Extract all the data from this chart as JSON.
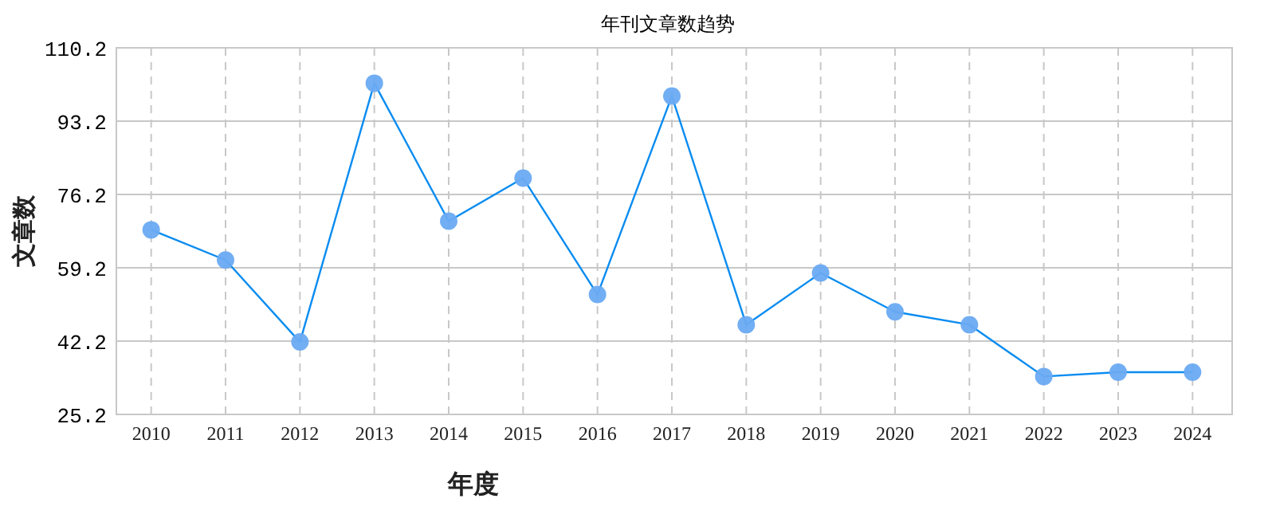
{
  "chart_data": {
    "type": "line",
    "title": "年刊文章数趋势",
    "xlabel": "年度",
    "ylabel": "文章数",
    "categories": [
      "2010",
      "2011",
      "2012",
      "2013",
      "2014",
      "2015",
      "2016",
      "2017",
      "2018",
      "2019",
      "2020",
      "2021",
      "2022",
      "2023",
      "2024"
    ],
    "series": [
      {
        "color": "#0a8cf0",
        "values": [
          68,
          61,
          42,
          102,
          70,
          80,
          53,
          99,
          46,
          58,
          49,
          46,
          34,
          35,
          35
        ]
      }
    ],
    "ylim": [
      25.2,
      110.2
    ],
    "yticks": [
      25.2,
      42.2,
      59.2,
      76.2,
      93.2,
      110.2
    ],
    "grid": true,
    "marker": "circle",
    "line_style": "solid"
  }
}
